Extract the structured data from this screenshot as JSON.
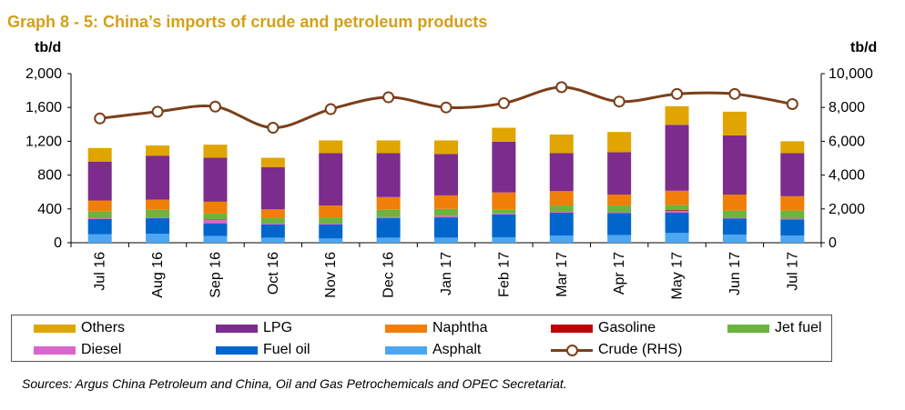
{
  "title": "Graph 8 - 5: China’s imports of crude and petroleum products",
  "source": "Sources: Argus China Petroleum and China, Oil and Gas Petrochemicals and OPEC Secretariat.",
  "chart_data": {
    "type": "bar",
    "stacked": true,
    "categories": [
      "Jul 16",
      "Aug 16",
      "Sep 16",
      "Oct 16",
      "Nov 16",
      "Dec 16",
      "Jan 17",
      "Feb 17",
      "Mar 17",
      "Apr 17",
      "May 17",
      "Jun 17",
      "Jul 17"
    ],
    "ylabel": "tb/d",
    "y2label": "tb/d",
    "ylim": [
      0,
      2000
    ],
    "y2lim": [
      0,
      10000
    ],
    "yticks": [
      "0",
      "400",
      "800",
      "1,200",
      "1,600",
      "2,000"
    ],
    "y2ticks": [
      "0",
      "2,000",
      "4,000",
      "6,000",
      "8,000",
      "10,000"
    ],
    "grid": false,
    "legend_position": "bottom",
    "series": [
      {
        "name": "Asphalt",
        "color": "#4DA6F0",
        "values": [
          100,
          105,
          80,
          60,
          50,
          60,
          60,
          65,
          85,
          90,
          115,
          95,
          85
        ]
      },
      {
        "name": "Fuel oil",
        "color": "#0066CC",
        "values": [
          180,
          185,
          150,
          155,
          165,
          230,
          240,
          270,
          270,
          260,
          240,
          190,
          190
        ]
      },
      {
        "name": "Diesel",
        "color": "#D966CC",
        "values": [
          10,
          10,
          40,
          10,
          10,
          15,
          15,
          10,
          10,
          10,
          20,
          10,
          10
        ]
      },
      {
        "name": "Gasoline",
        "color": "#C00000",
        "values": [
          0,
          0,
          5,
          0,
          0,
          0,
          0,
          0,
          0,
          0,
          10,
          0,
          0
        ]
      },
      {
        "name": "Jet fuel",
        "color": "#6DB33F",
        "values": [
          80,
          90,
          70,
          70,
          75,
          85,
          85,
          50,
          75,
          80,
          60,
          85,
          95
        ]
      },
      {
        "name": "Naphtha",
        "color": "#F07F09",
        "values": [
          130,
          120,
          140,
          100,
          140,
          150,
          160,
          200,
          170,
          130,
          170,
          190,
          170
        ]
      },
      {
        "name": "LPG",
        "color": "#7B2C8C",
        "values": [
          460,
          520,
          520,
          500,
          620,
          520,
          490,
          600,
          450,
          500,
          780,
          700,
          510
        ]
      },
      {
        "name": "Others",
        "color": "#E0A500",
        "values": [
          160,
          120,
          155,
          110,
          150,
          150,
          160,
          165,
          220,
          240,
          220,
          280,
          140
        ]
      }
    ],
    "line_series": {
      "name": "Crude (RHS)",
      "color": "#7B3F1A",
      "axis": "right",
      "values": [
        7350,
        7750,
        8050,
        6800,
        7900,
        8600,
        8000,
        8250,
        9200,
        8350,
        8800,
        8800,
        8200
      ]
    },
    "legend_entries": [
      "Others",
      "LPG",
      "Naphtha",
      "Gasoline",
      "Jet fuel",
      "Diesel",
      "Fuel oil",
      "Asphalt",
      "Crude (RHS)"
    ]
  }
}
